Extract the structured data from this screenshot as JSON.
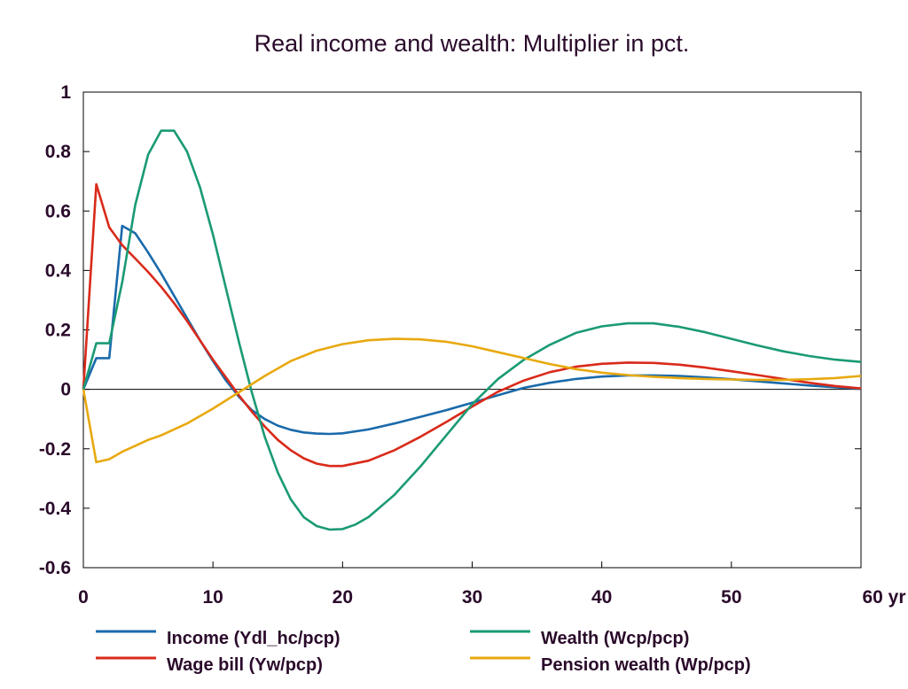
{
  "chart_data": {
    "type": "line",
    "title": "Real income and wealth: Multiplier in pct.",
    "xlabel": "",
    "ylabel": "",
    "x_unit_label": "yr",
    "xlim": [
      0,
      60
    ],
    "ylim": [
      -0.6,
      1
    ],
    "x_ticks": [
      0,
      10,
      20,
      30,
      40,
      50,
      60
    ],
    "x_tick_labels": [
      "0",
      "10",
      "20",
      "30",
      "40",
      "50",
      "60 yr"
    ],
    "y_ticks": [
      -0.6,
      -0.4,
      -0.2,
      0,
      0.2,
      0.4,
      0.6,
      0.8,
      1
    ],
    "y_tick_labels": [
      "-0.6",
      "-0.4",
      "-0.2",
      "0",
      "0.2",
      "0.4",
      "0.6",
      "0.8",
      "1"
    ],
    "grid": false,
    "zero_line": true,
    "legend_position": "bottom",
    "series": [
      {
        "name": "Income (Ydl_hc/pcp)",
        "color": "#1a6aab",
        "x": [
          0,
          1,
          2,
          3,
          4,
          5,
          6,
          7,
          8,
          9,
          10,
          11,
          12,
          13,
          14,
          15,
          16,
          17,
          18,
          19,
          20,
          22,
          24,
          26,
          28,
          30,
          32,
          34,
          36,
          38,
          40,
          42,
          44,
          46,
          48,
          50,
          52,
          54,
          56,
          58,
          60
        ],
        "y": [
          0,
          0.105,
          0.105,
          0.55,
          0.525,
          0.46,
          0.39,
          0.315,
          0.24,
          0.165,
          0.095,
          0.03,
          -0.025,
          -0.07,
          -0.1,
          -0.122,
          -0.136,
          -0.145,
          -0.149,
          -0.15,
          -0.148,
          -0.135,
          -0.115,
          -0.093,
          -0.07,
          -0.045,
          -0.02,
          0.005,
          0.022,
          0.035,
          0.043,
          0.047,
          0.047,
          0.045,
          0.04,
          0.034,
          0.027,
          0.02,
          0.013,
          0.007,
          0.002
        ]
      },
      {
        "name": "Wage bill (Yw/pcp)",
        "color": "#d92a1a",
        "x": [
          0,
          1,
          2,
          3,
          4,
          5,
          6,
          7,
          8,
          9,
          10,
          11,
          12,
          13,
          14,
          15,
          16,
          17,
          18,
          19,
          20,
          22,
          24,
          26,
          28,
          30,
          32,
          34,
          36,
          38,
          40,
          42,
          44,
          46,
          48,
          50,
          52,
          54,
          56,
          58,
          60
        ],
        "y": [
          0,
          0.69,
          0.545,
          0.485,
          0.44,
          0.395,
          0.345,
          0.29,
          0.23,
          0.165,
          0.1,
          0.04,
          -0.02,
          -0.075,
          -0.125,
          -0.17,
          -0.205,
          -0.232,
          -0.25,
          -0.258,
          -0.258,
          -0.24,
          -0.205,
          -0.16,
          -0.11,
          -0.058,
          -0.008,
          0.03,
          0.058,
          0.076,
          0.086,
          0.09,
          0.089,
          0.083,
          0.073,
          0.061,
          0.048,
          0.035,
          0.022,
          0.011,
          0.003
        ]
      },
      {
        "name": "Wealth (Wcp/pcp)",
        "color": "#1a9a74",
        "x": [
          0,
          1,
          2,
          3,
          4,
          5,
          6,
          7,
          8,
          9,
          10,
          11,
          12,
          13,
          14,
          15,
          16,
          17,
          18,
          19,
          20,
          21,
          22,
          24,
          26,
          28,
          30,
          32,
          34,
          36,
          38,
          40,
          42,
          44,
          46,
          48,
          50,
          52,
          54,
          56,
          58,
          60
        ],
        "y": [
          0,
          0.155,
          0.155,
          0.36,
          0.62,
          0.79,
          0.87,
          0.87,
          0.8,
          0.68,
          0.52,
          0.34,
          0.16,
          -0.01,
          -0.16,
          -0.28,
          -0.37,
          -0.43,
          -0.46,
          -0.472,
          -0.47,
          -0.455,
          -0.43,
          -0.355,
          -0.26,
          -0.155,
          -0.05,
          0.035,
          0.1,
          0.15,
          0.19,
          0.212,
          0.222,
          0.222,
          0.21,
          0.192,
          0.17,
          0.148,
          0.128,
          0.112,
          0.1,
          0.092
        ]
      },
      {
        "name": "Pension wealth (Wp/pcp)",
        "color": "#e8a90f",
        "x": [
          0,
          1,
          2,
          3,
          4,
          5,
          6,
          8,
          10,
          12,
          14,
          16,
          18,
          20,
          22,
          24,
          26,
          28,
          30,
          32,
          34,
          36,
          38,
          40,
          42,
          44,
          46,
          48,
          50,
          52,
          54,
          56,
          58,
          60
        ],
        "y": [
          0,
          -0.245,
          -0.235,
          -0.21,
          -0.19,
          -0.17,
          -0.155,
          -0.115,
          -0.065,
          -0.01,
          0.045,
          0.095,
          0.13,
          0.152,
          0.165,
          0.17,
          0.168,
          0.16,
          0.145,
          0.125,
          0.105,
          0.085,
          0.068,
          0.056,
          0.048,
          0.042,
          0.038,
          0.035,
          0.033,
          0.032,
          0.032,
          0.034,
          0.038,
          0.045
        ]
      }
    ]
  }
}
